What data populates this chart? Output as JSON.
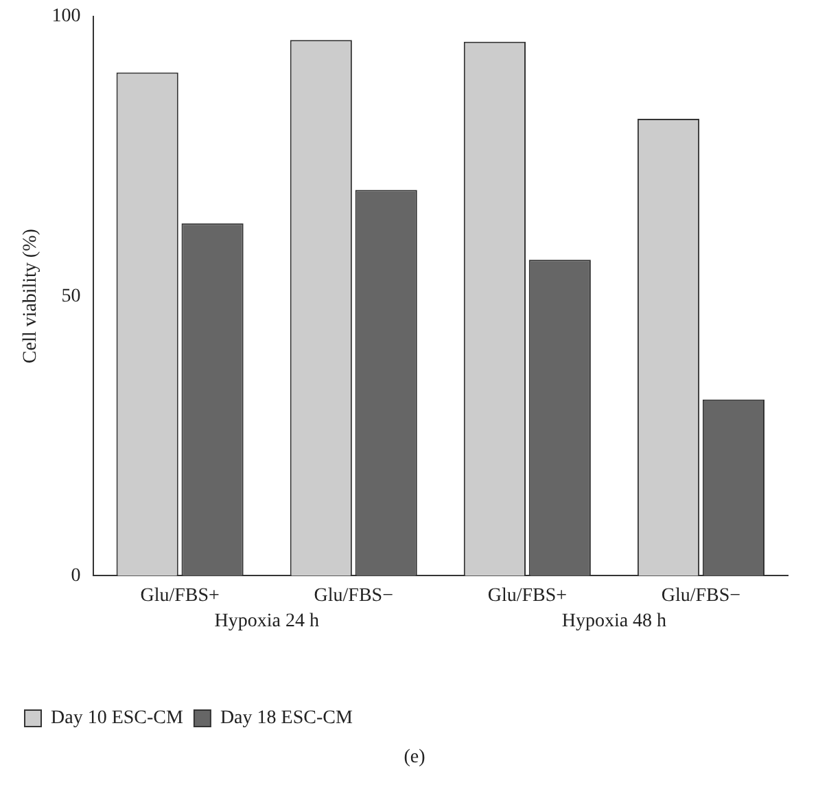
{
  "chart_data": {
    "type": "bar",
    "ylabel": "Cell viability (%)",
    "categories": [
      "Glu/FBS+",
      "Glu/FBS−",
      "Glu/FBS+",
      "Glu/FBS−"
    ],
    "series": [
      {
        "name": "Day 10 ESC-CM",
        "color": "#cccccc",
        "values": [
          90,
          95.8,
          95.5,
          81.7
        ]
      },
      {
        "name": "Day 18 ESC-CM",
        "color": "#666666",
        "values": [
          63,
          69,
          56.5,
          31.5
        ]
      }
    ],
    "ylim": [
      0,
      100
    ],
    "yticks": [
      0,
      50,
      100
    ],
    "grid": false,
    "legend": "bottom left",
    "annotations": [
      "Hypoxia 24 h",
      "Hypoxia 48 h",
      "(e)"
    ]
  }
}
